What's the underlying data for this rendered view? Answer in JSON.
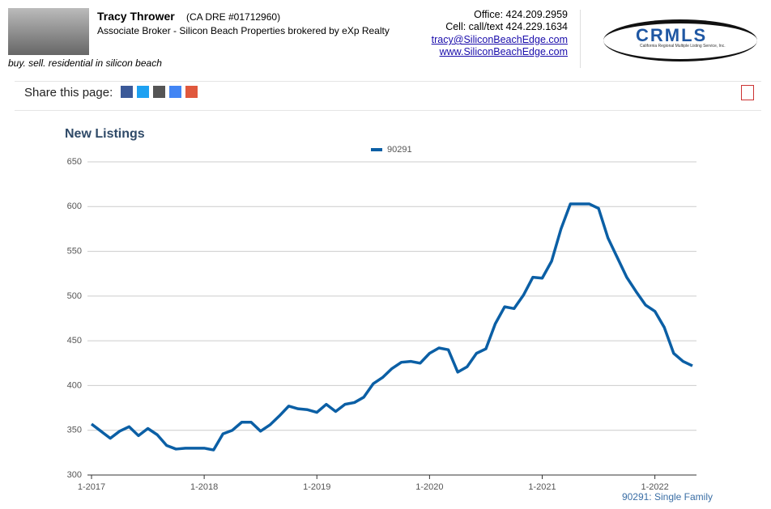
{
  "header": {
    "name": "Tracy Thrower",
    "license": "(CA DRE #01712960)",
    "title": "Associate Broker - Silicon Beach Properties brokered by eXp Realty",
    "tagline": "buy. sell. residential in silicon beach",
    "office": "Office: 424.209.2959",
    "cell": "Cell: call/text 424.229.1634",
    "email": "tracy@SiliconBeachEdge.com",
    "website": "www.SiliconBeachEdge.com",
    "logo": "CRMLS",
    "logo_sub": "California Regional Multiple Listing Service, Inc."
  },
  "share": {
    "label": "Share this page:"
  },
  "chart_data": {
    "type": "line",
    "title": "New Listings",
    "footnote": "90291: Single Family",
    "categories": [
      "1-2017",
      null,
      null,
      null,
      null,
      null,
      null,
      null,
      null,
      null,
      null,
      null,
      "1-2018",
      null,
      null,
      null,
      null,
      null,
      null,
      null,
      null,
      null,
      null,
      null,
      "1-2019",
      null,
      null,
      null,
      null,
      null,
      null,
      null,
      null,
      null,
      null,
      null,
      "1-2020",
      null,
      null,
      null,
      null,
      null,
      null,
      null,
      null,
      null,
      null,
      null,
      "1-2021",
      null,
      null,
      null,
      null,
      null,
      null,
      null,
      null,
      null,
      null,
      null,
      "1-2022",
      null,
      null,
      null,
      null
    ],
    "series": [
      {
        "name": "90291",
        "color": "#0b5fa5",
        "values": [
          357,
          349,
          341,
          349,
          354,
          344,
          352,
          345,
          333,
          329,
          330,
          330,
          330,
          328,
          346,
          350,
          359,
          359,
          349,
          356,
          366,
          377,
          374,
          373,
          370,
          379,
          371,
          379,
          381,
          387,
          402,
          409,
          419,
          426,
          427,
          425,
          436,
          442,
          440,
          415,
          421,
          436,
          441,
          469,
          488,
          486,
          501,
          521,
          520,
          539,
          575,
          603,
          603,
          603,
          598,
          565,
          543,
          521,
          505,
          490,
          483,
          465,
          436,
          427,
          422
        ]
      }
    ],
    "ylim": [
      300,
      650
    ],
    "yticks": [
      300,
      350,
      400,
      450,
      500,
      550,
      600,
      650
    ],
    "grid": true,
    "legend": "top"
  }
}
